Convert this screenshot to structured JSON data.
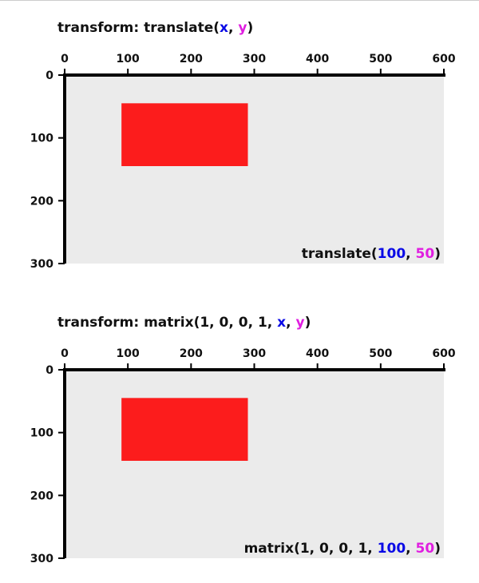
{
  "panels": [
    {
      "title_parts": [
        "transform: translate(",
        "x",
        ", ",
        "y",
        ")"
      ],
      "xlim": [
        0,
        600
      ],
      "ylim": [
        0,
        300
      ],
      "xticks": [
        0,
        100,
        200,
        300,
        400,
        500,
        600
      ],
      "yticks": [
        0,
        100,
        200,
        300
      ],
      "label_parts": [
        "translate(",
        100,
        ", ",
        50,
        ")"
      ]
    },
    {
      "title_parts": [
        "transform: matrix(1, 0, 0, 1, ",
        "x",
        ", ",
        "y",
        ")"
      ],
      "xlim": [
        0,
        600
      ],
      "ylim": [
        0,
        300
      ],
      "xticks": [
        0,
        100,
        200,
        300,
        400,
        500,
        600
      ],
      "yticks": [
        0,
        100,
        200,
        300
      ],
      "label_parts": [
        "matrix(1, 0, 0, 1, ",
        100,
        ", ",
        50,
        ")"
      ]
    }
  ]
}
